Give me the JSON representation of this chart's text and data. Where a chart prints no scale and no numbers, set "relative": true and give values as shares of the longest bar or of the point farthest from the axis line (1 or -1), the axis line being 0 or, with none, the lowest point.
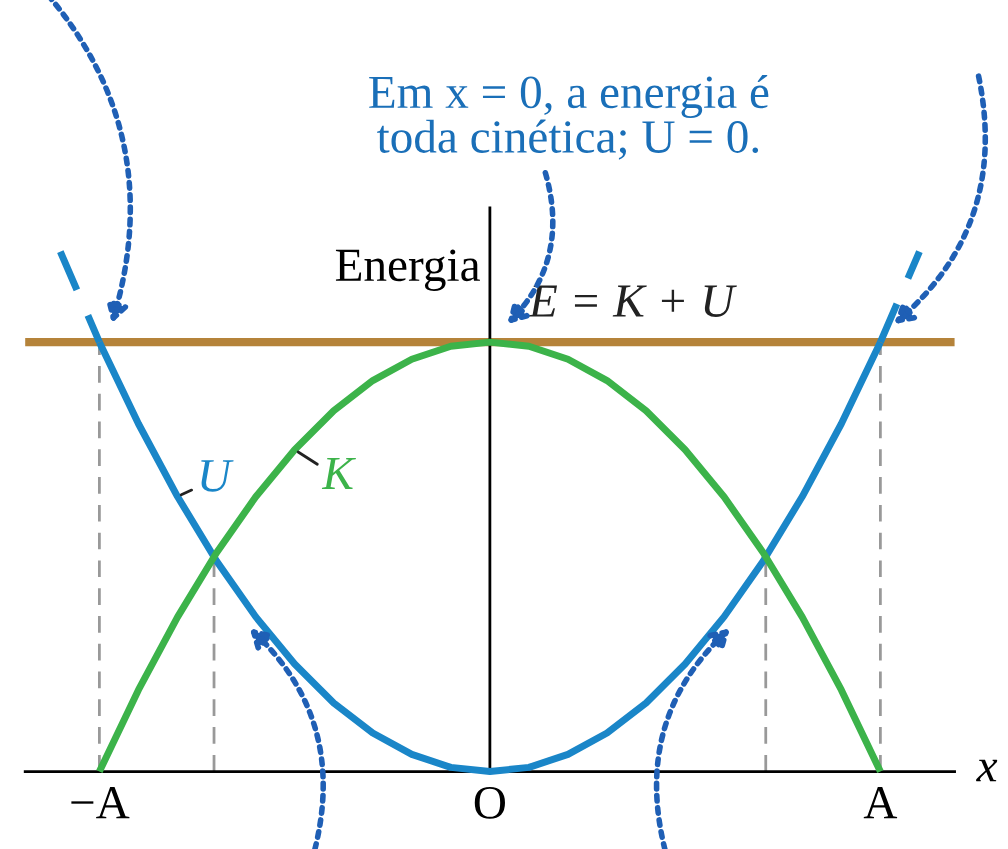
{
  "chart_data": {
    "type": "line",
    "relative": true,
    "title": "Em x = 0, a energia é\ntoda cinética; U = 0.",
    "ylabel": "Energia",
    "xlabel": "x",
    "categories": [
      null,
      "−A",
      null,
      null,
      null,
      null,
      null,
      null,
      null,
      null,
      null,
      "O",
      null,
      null,
      null,
      null,
      null,
      null,
      null,
      null,
      null,
      "A",
      null
    ],
    "series": [
      {
        "name": "U",
        "color": "#1a86c8",
        "values": [
          null,
          0.826,
          0.669,
          0.529,
          0.405,
          0.298,
          0.207,
          0.132,
          0.074,
          0.033,
          0.008,
          0,
          0.008,
          0.033,
          0.074,
          0.132,
          0.207,
          0.298,
          0.405,
          0.529,
          0.669,
          0.826,
          null
        ]
      },
      {
        "name": "K",
        "color": "#3cb34a",
        "values": [
          null,
          0,
          0.157,
          0.297,
          0.421,
          0.528,
          0.619,
          0.694,
          0.752,
          0.793,
          0.818,
          0.826,
          0.818,
          0.793,
          0.752,
          0.694,
          0.619,
          0.528,
          0.421,
          0.297,
          0.157,
          0,
          null
        ]
      },
      {
        "color": "#1a86c8",
        "line_style": "dashed",
        "values": [
          1,
          0.826,
          null,
          null,
          null,
          null,
          null,
          null,
          null,
          null,
          null,
          null,
          null,
          null,
          null,
          null,
          null,
          null,
          null,
          null,
          null,
          null,
          null
        ]
      },
      {
        "color": "#1a86c8",
        "line_style": "dashed",
        "values": [
          null,
          null,
          null,
          null,
          null,
          null,
          null,
          null,
          null,
          null,
          null,
          null,
          null,
          null,
          null,
          null,
          null,
          null,
          null,
          null,
          null,
          0.826,
          1
        ]
      }
    ],
    "ref_lines": [
      {
        "axis": "y",
        "value": 0.826,
        "label": "E = K + U",
        "color": "#b5833a",
        "line_style": "solid"
      },
      {
        "axis": "x",
        "value": "−A",
        "color": "#999999",
        "line_style": "dashed"
      },
      {
        "axis": "x",
        "value": "A",
        "color": "#999999",
        "line_style": "dashed"
      }
    ],
    "grid": false,
    "legend": false,
    "marker": "none"
  }
}
